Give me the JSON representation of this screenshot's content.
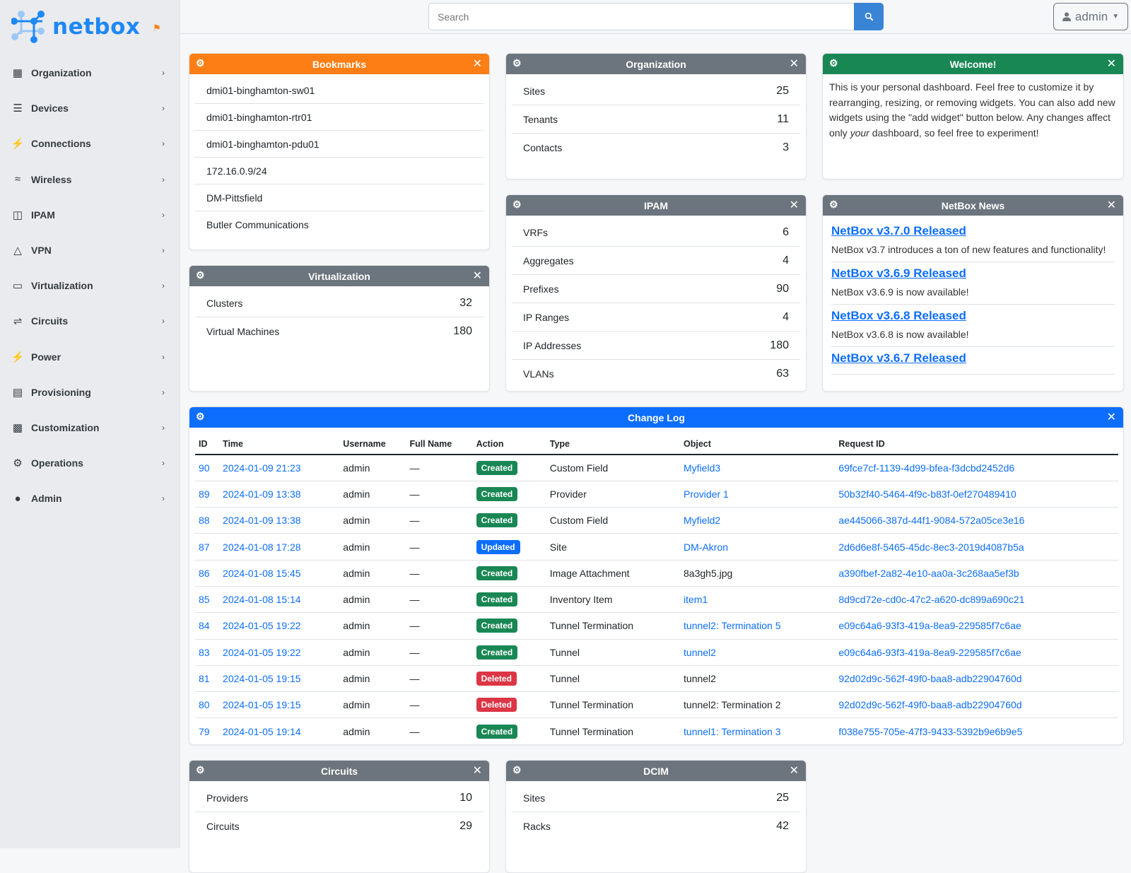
{
  "brand": {
    "name": "netbox",
    "accent": "#1e88f5"
  },
  "sidebar": {
    "items": [
      {
        "label": "Organization",
        "icon": "building-icon"
      },
      {
        "label": "Devices",
        "icon": "server-icon"
      },
      {
        "label": "Connections",
        "icon": "plug-icon"
      },
      {
        "label": "Wireless",
        "icon": "wifi-icon"
      },
      {
        "label": "IPAM",
        "icon": "counter-icon"
      },
      {
        "label": "VPN",
        "icon": "network-icon"
      },
      {
        "label": "Virtualization",
        "icon": "monitor-icon"
      },
      {
        "label": "Circuits",
        "icon": "transit-icon"
      },
      {
        "label": "Power",
        "icon": "flash-icon"
      },
      {
        "label": "Provisioning",
        "icon": "file-icon"
      },
      {
        "label": "Customization",
        "icon": "toolbox-icon"
      },
      {
        "label": "Operations",
        "icon": "cogs-icon"
      },
      {
        "label": "Admin",
        "icon": "users-icon"
      }
    ]
  },
  "topbar": {
    "search_placeholder": "Search",
    "user": "admin"
  },
  "widgets": {
    "bookmarks": {
      "title": "Bookmarks",
      "color": "#fd7e14",
      "items": [
        "dmi01-binghamton-sw01",
        "dmi01-binghamton-rtr01",
        "dmi01-binghamton-pdu01",
        "172.16.0.9/24",
        "DM-Pittsfield",
        "Butler Communications"
      ]
    },
    "organization": {
      "title": "Organization",
      "items": [
        {
          "label": "Sites",
          "count": "25"
        },
        {
          "label": "Tenants",
          "count": "11"
        },
        {
          "label": "Contacts",
          "count": "3"
        }
      ]
    },
    "welcome": {
      "title": "Welcome!",
      "color": "#198754",
      "text_before": "This is your personal dashboard. Feel free to customize it by rearranging, resizing, or removing widgets. You can also add new widgets using the \"add widget\" button below. Any changes affect only ",
      "text_em": "your",
      "text_after": " dashboard, so feel free to experiment!"
    },
    "virtualization": {
      "title": "Virtualization",
      "items": [
        {
          "label": "Clusters",
          "count": "32"
        },
        {
          "label": "Virtual Machines",
          "count": "180"
        }
      ]
    },
    "ipam": {
      "title": "IPAM",
      "items": [
        {
          "label": "VRFs",
          "count": "6"
        },
        {
          "label": "Aggregates",
          "count": "4"
        },
        {
          "label": "Prefixes",
          "count": "90"
        },
        {
          "label": "IP Ranges",
          "count": "4"
        },
        {
          "label": "IP Addresses",
          "count": "180"
        },
        {
          "label": "VLANs",
          "count": "63"
        }
      ]
    },
    "news": {
      "title": "NetBox News",
      "items": [
        {
          "title": "NetBox v3.7.0 Released",
          "text": "NetBox v3.7 introduces a ton of new features and functionality!"
        },
        {
          "title": "NetBox v3.6.9 Released",
          "text": "NetBox v3.6.9 is now available!"
        },
        {
          "title": "NetBox v3.6.8 Released",
          "text": "NetBox v3.6.8 is now available!"
        },
        {
          "title": "NetBox v3.6.7 Released",
          "text": ""
        }
      ]
    },
    "changelog": {
      "title": "Changelog",
      "display_title": "Change Log",
      "color": "#0d6efd",
      "columns": [
        "ID",
        "Time",
        "Username",
        "Full Name",
        "Action",
        "Type",
        "Object",
        "Request ID"
      ],
      "rows": [
        [
          "90",
          "2024-01-09 21:23",
          "admin",
          "—",
          "Created",
          "Custom Field",
          "Myfield3",
          "69fce7cf-1139-4d99-bfea-f3dcbd2452d6",
          true
        ],
        [
          "89",
          "2024-01-09 13:38",
          "admin",
          "—",
          "Created",
          "Provider",
          "Provider 1",
          "50b32f40-5464-4f9c-b83f-0ef270489410",
          true
        ],
        [
          "88",
          "2024-01-09 13:38",
          "admin",
          "—",
          "Created",
          "Custom Field",
          "Myfield2",
          "ae445066-387d-44f1-9084-572a05ce3e16",
          true
        ],
        [
          "87",
          "2024-01-08 17:28",
          "admin",
          "—",
          "Updated",
          "Site",
          "DM-Akron",
          "2d6d6e8f-5465-45dc-8ec3-2019d4087b5a",
          true
        ],
        [
          "86",
          "2024-01-08 15:45",
          "admin",
          "—",
          "Created",
          "Image Attachment",
          "8a3gh5.jpg",
          "a390fbef-2a82-4e10-aa0a-3c268aa5ef3b",
          false
        ],
        [
          "85",
          "2024-01-08 15:14",
          "admin",
          "—",
          "Created",
          "Inventory Item",
          "item1",
          "8d9cd72e-cd0c-47c2-a620-dc899a690c21",
          true
        ],
        [
          "84",
          "2024-01-05 19:22",
          "admin",
          "—",
          "Created",
          "Tunnel Termination",
          "tunnel2: Termination 5",
          "e09c64a6-93f3-419a-8ea9-229585f7c6ae",
          true
        ],
        [
          "83",
          "2024-01-05 19:22",
          "admin",
          "—",
          "Created",
          "Tunnel",
          "tunnel2",
          "e09c64a6-93f3-419a-8ea9-229585f7c6ae",
          true
        ],
        [
          "81",
          "2024-01-05 19:15",
          "admin",
          "—",
          "Deleted",
          "Tunnel",
          "tunnel2",
          "92d02d9c-562f-49f0-baa8-adb22904760d",
          false
        ],
        [
          "80",
          "2024-01-05 19:15",
          "admin",
          "—",
          "Deleted",
          "Tunnel Termination",
          "tunnel2: Termination 2",
          "92d02d9c-562f-49f0-baa8-adb22904760d",
          false
        ],
        [
          "79",
          "2024-01-05 19:14",
          "admin",
          "—",
          "Created",
          "Tunnel Termination",
          "tunnel1: Termination 3",
          "f038e755-705e-47f3-9433-5392b9e6b9e5",
          true
        ]
      ],
      "badge_colors": {
        "Created": "#198754",
        "Updated": "#0d6efd",
        "Deleted": "#dc3545"
      }
    },
    "circuits": {
      "title": "Circuits",
      "items": [
        {
          "label": "Providers",
          "count": "10"
        },
        {
          "label": "Circuits",
          "count": "29"
        }
      ]
    },
    "dcim": {
      "title": "DCIM",
      "items": [
        {
          "label": "Sites",
          "count": "25"
        },
        {
          "label": "Racks",
          "count": "42"
        }
      ]
    },
    "header_gray": "#6c757d"
  }
}
